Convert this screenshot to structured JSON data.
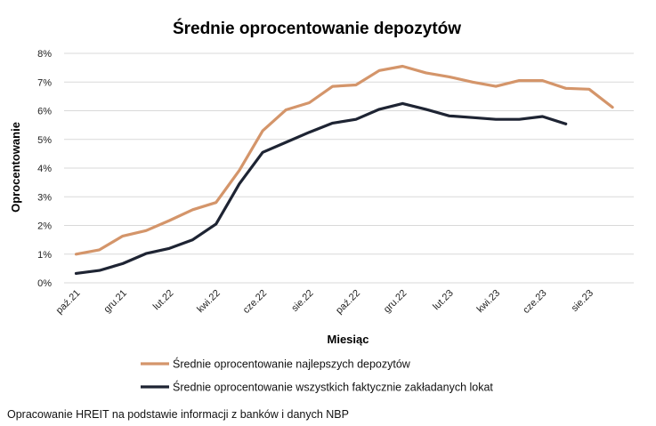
{
  "chart_data": {
    "type": "line",
    "title": "Średnie oprocentowanie depozytów",
    "xlabel": "Miesiąc",
    "ylabel": "Oprocentowanie",
    "y_ticks": [
      "0%",
      "1%",
      "2%",
      "3%",
      "4%",
      "5%",
      "6%",
      "7%",
      "8%"
    ],
    "ylim": [
      0,
      8
    ],
    "x_tick_labels": [
      "paź.21",
      "gru.21",
      "lut.22",
      "kwi.22",
      "cze.22",
      "sie.22",
      "paź.22",
      "gru.22",
      "lut.23",
      "kwi.23",
      "cze.23",
      "sie.23"
    ],
    "grid": "horizontal",
    "legend_position": "bottom",
    "series": [
      {
        "name": "Średnie oprocentowanie najlepszych depozytów",
        "color": "#d4956a",
        "values": [
          1.0,
          1.15,
          1.63,
          1.82,
          2.17,
          2.55,
          2.8,
          3.92,
          5.3,
          6.03,
          6.28,
          6.85,
          6.9,
          7.4,
          7.55,
          7.32,
          7.18,
          7.0,
          6.85,
          7.05,
          7.05,
          6.78,
          6.75,
          6.12
        ]
      },
      {
        "name": "Średnie oprocentowanie wszystkich faktycznie zakładanych lokat",
        "color": "#1e2433",
        "values": [
          0.33,
          0.43,
          0.67,
          1.02,
          1.2,
          1.5,
          2.05,
          3.45,
          4.55,
          4.9,
          5.25,
          5.57,
          5.7,
          6.05,
          6.25,
          6.05,
          5.82,
          5.76,
          5.7,
          5.7,
          5.8,
          5.54
        ]
      }
    ]
  },
  "source_note": "Opracowanie HREIT na podstawie informacji z banków i danych NBP"
}
